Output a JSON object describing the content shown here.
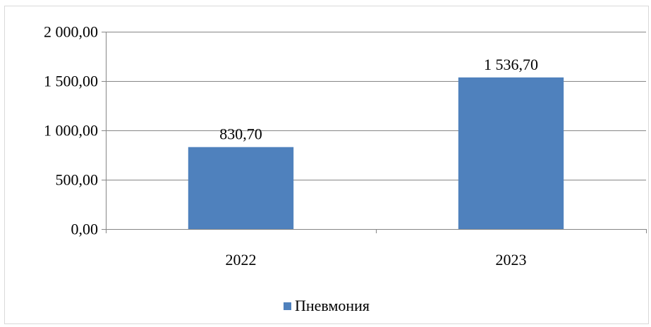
{
  "chart_data": {
    "type": "bar",
    "categories": [
      "2022",
      "2023"
    ],
    "series": [
      {
        "name": "Пневмония",
        "values": [
          830.7,
          1536.7
        ],
        "color": "#4f81bd"
      }
    ],
    "data_labels": [
      "830,70",
      "1 536,70"
    ],
    "y_tick_values": [
      0,
      500,
      1000,
      1500,
      2000
    ],
    "y_tick_labels": [
      "0,00",
      "500,00",
      "1 000,00",
      "1 500,00",
      "2 000,00"
    ],
    "ylim": [
      0,
      2000
    ],
    "grid": true,
    "legend": "bottom"
  }
}
